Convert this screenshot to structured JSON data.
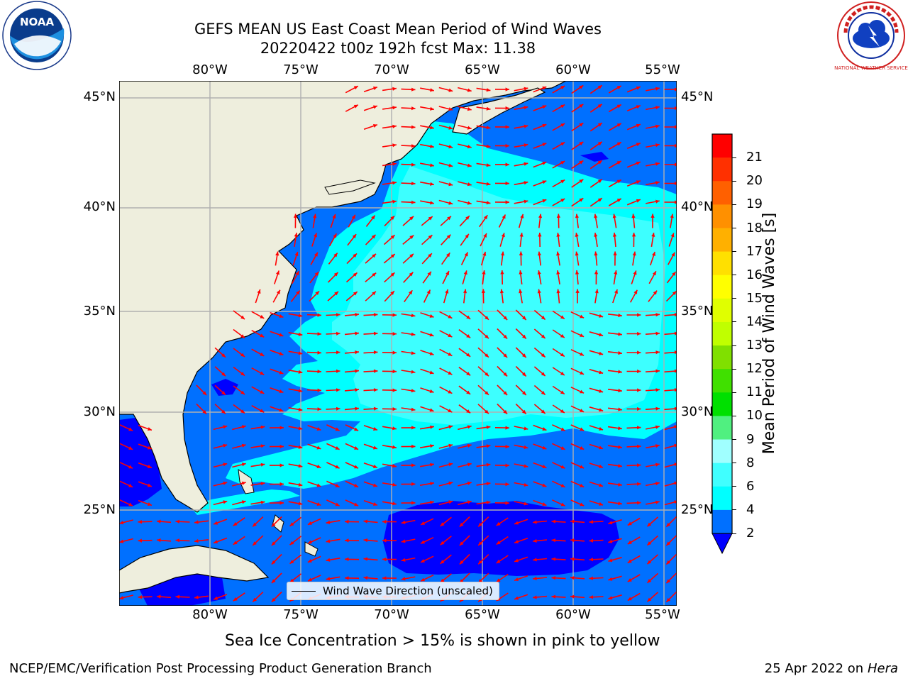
{
  "title": {
    "line1": "GEFS MEAN US East Coast Mean Period of Wind Waves",
    "line2": "20220422 t00z 192h fcst   Max: 11.38"
  },
  "axes": {
    "lon_labels": [
      "80°W",
      "75°W",
      "70°W",
      "65°W",
      "60°W",
      "55°W"
    ],
    "lat_labels": [
      "45°N",
      "40°N",
      "35°N",
      "30°N",
      "25°N"
    ]
  },
  "colorbar": {
    "label": "Mean Period of Wind Waves [s]",
    "ticks": [
      "2",
      "4",
      "6",
      "8",
      "9",
      "10",
      "11",
      "12",
      "13",
      "14",
      "15",
      "16",
      "17",
      "18",
      "19",
      "20",
      "21"
    ],
    "colors": [
      "#0070ff",
      "#00ffff",
      "#40ffff",
      "#a0ffff",
      "#50f080",
      "#00e000",
      "#40e000",
      "#80e000",
      "#c0ff00",
      "#e0ff00",
      "#ffff00",
      "#ffe000",
      "#ffb000",
      "#ff9000",
      "#ff6000",
      "#ff3000",
      "#ff0000"
    ],
    "under_color": "#0000ff"
  },
  "legend": {
    "label": "Wind Wave Direction (unscaled)"
  },
  "subtitle": "Sea Ice Concentration > 15% is shown in pink to yellow",
  "footer": {
    "left": "NCEP/EMC/Verification Post Processing Product Generation Branch",
    "date": "25 Apr 2022 on ",
    "machine": "Hera"
  },
  "logos": {
    "left_text": "NOAA",
    "right_text": "NATIONAL WEATHER SERVICE"
  },
  "map_colors": {
    "land": "#eeeedd",
    "ocean_blue": "#0070ff",
    "ocean_cyan": "#00ffff",
    "ocean_light": "#40ffff",
    "deep_blue": "#0000ff",
    "arrow": "#ff0000",
    "grid": "#b0b0b0"
  }
}
